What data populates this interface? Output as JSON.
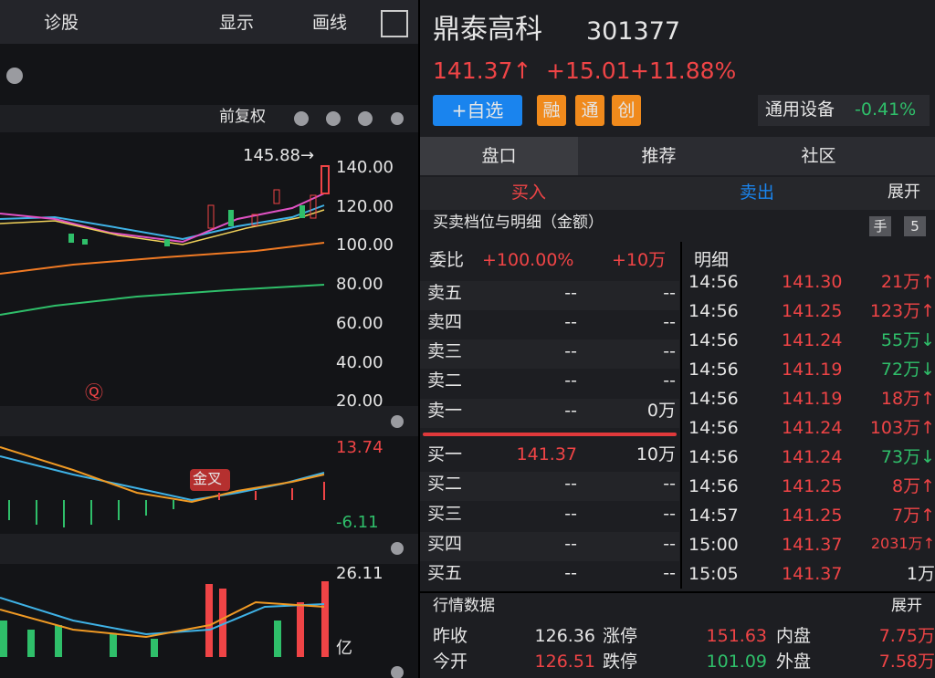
{
  "left": {
    "toolbar": [
      "诊股",
      "显示",
      "画线"
    ],
    "adjust": "前复权",
    "high_label": "145.88→",
    "price_axis": [
      "140.00",
      "120.00",
      "100.00",
      "80.00",
      "60.00",
      "40.00",
      "20.00"
    ],
    "macd": {
      "top": "13.74",
      "bottom": "-6.11",
      "cross": "金叉"
    },
    "volume": {
      "top": "26.11",
      "unit": "亿"
    }
  },
  "header": {
    "name": "鼎泰高科",
    "code": "301377",
    "price": "141.37↑",
    "change": "+15.01",
    "pct": "+11.88%",
    "watch": "+自选",
    "tags": [
      "融",
      "通",
      "创"
    ],
    "sector": "通用设备",
    "sector_pct": "-0.41%"
  },
  "tabs": [
    "盘口",
    "推荐",
    "社区"
  ],
  "trade": {
    "buy": "买入",
    "sell": "卖出",
    "expand": "展开"
  },
  "book": {
    "title": "买卖档位与明细（金额）",
    "hand": "手",
    "level": "5",
    "ratio_label": "委比",
    "ratio": "+100.00%",
    "ratio_amount": "+10万",
    "rows": [
      [
        "卖五",
        "--",
        "--"
      ],
      [
        "卖四",
        "--",
        "--"
      ],
      [
        "卖三",
        "--",
        "--"
      ],
      [
        "卖二",
        "--",
        "--"
      ],
      [
        "卖一",
        "--",
        "0万"
      ],
      [
        "买一",
        "141.37",
        "10万"
      ],
      [
        "买二",
        "--",
        "--"
      ],
      [
        "买三",
        "--",
        "--"
      ],
      [
        "买四",
        "--",
        "--"
      ],
      [
        "买五",
        "--",
        "--"
      ]
    ]
  },
  "detail": {
    "title": "明细",
    "rows": [
      [
        "14:56",
        "141.30",
        "21万↑"
      ],
      [
        "14:56",
        "141.25",
        "123万↑"
      ],
      [
        "14:56",
        "141.24",
        "55万↓"
      ],
      [
        "14:56",
        "141.19",
        "72万↓"
      ],
      [
        "14:56",
        "141.19",
        "18万↑"
      ],
      [
        "14:56",
        "141.24",
        "103万↑"
      ],
      [
        "14:56",
        "141.24",
        "73万↓"
      ],
      [
        "14:56",
        "141.25",
        "8万↑"
      ],
      [
        "14:57",
        "141.25",
        "7万↑"
      ],
      [
        "15:00",
        "141.37",
        "2031万↑"
      ],
      [
        "15:05",
        "141.37",
        "1万"
      ]
    ]
  },
  "market": {
    "title": "行情数据",
    "expand": "展开",
    "rows": [
      [
        "昨收",
        "126.36",
        "涨停",
        "151.63",
        "内盘",
        "7.75万"
      ],
      [
        "今开",
        "126.51",
        "跌停",
        "101.09",
        "外盘",
        "7.58万"
      ]
    ]
  }
}
